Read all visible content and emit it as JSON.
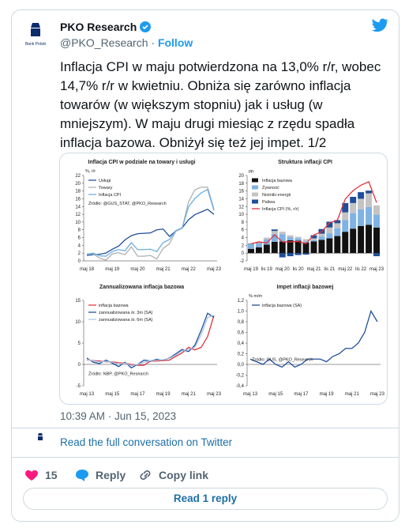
{
  "tweet": {
    "author": "PKO Research",
    "logo_text": "Bank Polski",
    "handle": "@PKO_Research",
    "separator": "·",
    "follow": "Follow",
    "text": "Inflacja CPI w maju potwierdzona na 13,0% r/r, wobec 14,7% r/r w kwietniu. Obniża się zarówno inflacja towarów (w większym stopniu) jak i usług (w mniejszym). W maju drugi miesiąc z rzędu spadła inflacja bazowa. Obniżył się też jej impet. 1/2",
    "timestamp": "10:39 AM · Jun 15, 2023",
    "read_conversation": "Read the full conversation on Twitter",
    "likes": 15,
    "reply": "Reply",
    "copy_link": "Copy link",
    "read_replies": "Read 1 reply"
  },
  "chart_data": [
    {
      "type": "line",
      "title": "Inflacja CPI w podziale na towary i usługi",
      "y_label": "%, r/r",
      "source": "Źródło: @GUS_STAT, @PKO_Research",
      "categories": [
        "maj 18",
        null,
        null,
        null,
        "maj 19",
        null,
        null,
        null,
        "maj 20",
        null,
        null,
        null,
        "maj 21",
        null,
        null,
        null,
        "maj 22",
        null,
        null,
        null,
        "maj 23"
      ],
      "series": [
        {
          "name": "Usługi",
          "color": "#1f4e9a",
          "values": [
            1.4,
            1.6,
            1.7,
            2.0,
            3.0,
            3.8,
            5.4,
            6.5,
            7.0,
            7.1,
            7.2,
            8.0,
            8.2,
            6.3,
            7.7,
            8.5,
            10.6,
            11.9,
            12.6,
            13.3,
            12.0
          ]
        },
        {
          "name": "Towary",
          "color": "#b0b0b0",
          "values": [
            1.8,
            1.8,
            0.7,
            0.2,
            1.8,
            2.1,
            1.6,
            3.6,
            1.2,
            1.2,
            1.4,
            0.5,
            3.2,
            4.4,
            7.6,
            8.4,
            15.2,
            18.3,
            19.0,
            19.0,
            13.3
          ]
        },
        {
          "name": "Inflacja CPI",
          "color": "#6aaee0",
          "values": [
            1.7,
            2.0,
            1.3,
            1.2,
            2.4,
            2.9,
            2.6,
            4.7,
            2.9,
            2.9,
            3.0,
            2.4,
            4.7,
            5.5,
            7.8,
            8.5,
            13.9,
            16.1,
            17.5,
            18.4,
            13.0
          ]
        }
      ],
      "ylim": [
        0,
        22
      ],
      "yticks": [
        0,
        2,
        4,
        6,
        8,
        10,
        12,
        14,
        16,
        18,
        20,
        22
      ],
      "grid": false,
      "legend": "upper left"
    },
    {
      "type": "bar_stacked",
      "title": "Struktura inflacji CPI",
      "y_label": "pp.",
      "categories": [
        "maj 19",
        null,
        "lis 19",
        null,
        "maj 20",
        null,
        "lis 20",
        null,
        "maj 21",
        null,
        "lis 21",
        null,
        "maj 22",
        null,
        "lis 22",
        null,
        "maj 23"
      ],
      "series": [
        {
          "name": "Inflacja bazowa",
          "color": "#111111",
          "values": [
            1.1,
            1.5,
            2.2,
            2.9,
            3.0,
            3.3,
            3.2,
            2.7,
            3.0,
            3.4,
            3.8,
            4.4,
            5.5,
            6.3,
            7.0,
            7.3,
            6.6
          ]
        },
        {
          "name": "Żywność",
          "color": "#7fb2e5",
          "values": [
            1.2,
            0.9,
            1.3,
            2.0,
            1.9,
            0.8,
            0.6,
            0.3,
            0.3,
            0.9,
            1.3,
            2.0,
            3.0,
            4.0,
            4.3,
            4.6,
            3.3
          ]
        },
        {
          "name": "Nośniki energii",
          "color": "#c4c4c4",
          "values": [
            0.1,
            0.1,
            0.5,
            0.8,
            0.6,
            0.5,
            0.4,
            0.6,
            0.5,
            0.7,
            1.5,
            1.3,
            2.0,
            2.6,
            2.7,
            3.5,
            2.4
          ]
        },
        {
          "name": "Paliwa",
          "color": "#1f4e9a",
          "values": [
            0.1,
            0.1,
            0.0,
            0.4,
            -1.1,
            -0.8,
            -0.5,
            -0.4,
            0.8,
            1.2,
            1.5,
            0.8,
            2.4,
            1.6,
            1.7,
            0.7,
            -0.8
          ]
        },
        {
          "name": "Inflacja CPI (%, r/r)",
          "color": "#e0333c",
          "type": "line",
          "values": [
            2.4,
            2.9,
            2.6,
            4.7,
            2.9,
            2.9,
            3.0,
            2.4,
            4.7,
            5.5,
            7.8,
            8.5,
            13.9,
            16.1,
            17.5,
            18.4,
            13.0
          ]
        }
      ],
      "ylim": [
        -2,
        20
      ],
      "yticks": [
        -2,
        0,
        2,
        4,
        6,
        8,
        10,
        12,
        14,
        16,
        18,
        20
      ],
      "grid": false,
      "legend": "upper left"
    },
    {
      "type": "line",
      "title": "Zannualizowana inflacja bazowa",
      "source": "Źródło: NBP, @PKO_Research",
      "categories": [
        "maj 13",
        null,
        null,
        null,
        "maj 15",
        null,
        null,
        null,
        "maj 17",
        null,
        null,
        null,
        "maj 19",
        null,
        null,
        null,
        "maj 21",
        null,
        null,
        null,
        "maj 23"
      ],
      "series": [
        {
          "name": "inflacja bazowa",
          "color": "#e0333c",
          "values": [
            1.1,
            0.9,
            0.8,
            0.6,
            0.6,
            0.4,
            0.3,
            0.0,
            -0.2,
            -0.2,
            0.8,
            0.8,
            0.9,
            1.0,
            1.9,
            2.7,
            4.0,
            3.4,
            4.0,
            6.5,
            11.5
          ]
        },
        {
          "name": "zannualizowana śr. 3m (SA)",
          "color": "#1f4e9a",
          "values": [
            1.5,
            0.5,
            0.2,
            1.0,
            0.3,
            -0.5,
            0.5,
            -0.8,
            0.0,
            1.0,
            0.8,
            1.2,
            1.0,
            1.5,
            2.5,
            3.5,
            3.0,
            4.5,
            8.0,
            12.0,
            11.0
          ]
        },
        {
          "name": "zannualizowana śr. 6m (SA)",
          "color": "#a7c6e6",
          "values": [
            1.2,
            0.8,
            0.6,
            0.7,
            0.5,
            0.0,
            0.3,
            -0.3,
            0.0,
            0.5,
            0.9,
            1.0,
            1.1,
            1.4,
            2.2,
            3.2,
            3.5,
            4.0,
            7.0,
            11.0,
            11.5
          ]
        }
      ],
      "ylim": [
        -5,
        15
      ],
      "yticks": [
        -5,
        0,
        5,
        10,
        15
      ],
      "grid": false,
      "legend": "upper left"
    },
    {
      "type": "line",
      "title": "Impet inflacji bazowej",
      "y_label": "% m/m",
      "source": "Źródło: GUS, @PKO_Research",
      "categories": [
        "maj 13",
        null,
        null,
        null,
        "maj 15",
        null,
        null,
        null,
        "maj 17",
        null,
        null,
        null,
        "maj 19",
        null,
        null,
        null,
        "maj 21",
        null,
        null,
        null,
        "maj 23"
      ],
      "series": [
        {
          "name": "inflacja bazowa (SA)",
          "color": "#1f4e9a",
          "values": [
            0.1,
            0.05,
            0.0,
            0.1,
            0.0,
            -0.05,
            0.05,
            -0.05,
            0.0,
            0.1,
            0.1,
            0.1,
            0.05,
            0.15,
            0.2,
            0.3,
            0.3,
            0.4,
            0.6,
            1.0,
            0.8
          ]
        }
      ],
      "ylim": [
        -0.4,
        1.2
      ],
      "yticks": [
        {
          "value": -0.4,
          "label": "-0,4"
        },
        {
          "value": -0.2,
          "label": "-0,2"
        },
        {
          "value": 0,
          "label": "0,0"
        },
        {
          "value": 0.2,
          "label": "0,2"
        },
        {
          "value": 0.4,
          "label": "0,4"
        },
        {
          "value": 0.6,
          "label": "0,6"
        },
        {
          "value": 0.8,
          "label": "0,8"
        },
        {
          "value": 1.0,
          "label": "1,0"
        },
        {
          "value": 1.2,
          "label": "1,2"
        }
      ],
      "grid": false,
      "legend": "upper left"
    }
  ]
}
